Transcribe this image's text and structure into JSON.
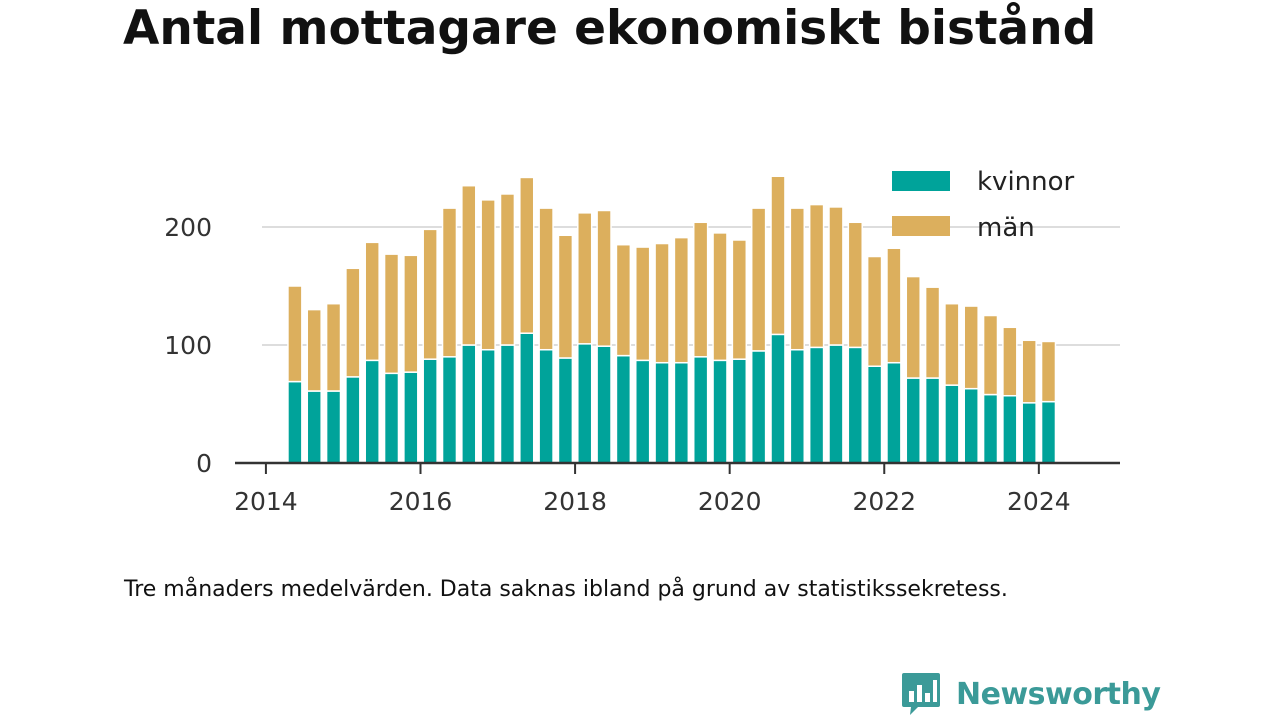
{
  "header": {
    "title": "Antal mottagare ekonomiskt bistånd"
  },
  "footer": {
    "caption": "Tre månaders medelvärden. Data saknas ibland på grund av statistikssekretess.",
    "brand": "Newsworthy"
  },
  "colors": {
    "kvinnor": "#00a39a",
    "man": "#dcaf5d",
    "axis": "#333333",
    "grid": "#dddddd",
    "brand": "#3b9a98"
  },
  "chart_data": {
    "type": "bar",
    "stacked": true,
    "title": "Antal mottagare ekonomiskt bistånd",
    "xlabel": "",
    "ylabel": "",
    "xlim": [
      2013.6,
      2025.05
    ],
    "ylim": [
      0,
      250
    ],
    "x_ticks": [
      2014,
      2016,
      2018,
      2020,
      2022,
      2024
    ],
    "x_tick_labels": [
      "2014",
      "2016",
      "2018",
      "2020",
      "2022",
      "2024"
    ],
    "y_ticks": [
      0,
      100,
      200
    ],
    "y_tick_labels": [
      "0",
      "100",
      "200"
    ],
    "grid": true,
    "legend_position": "top-right",
    "x": [
      2014.375,
      2014.625,
      2014.875,
      2015.125,
      2015.375,
      2015.625,
      2015.875,
      2016.125,
      2016.375,
      2016.625,
      2016.875,
      2017.125,
      2017.375,
      2017.625,
      2017.875,
      2018.125,
      2018.375,
      2018.625,
      2018.875,
      2019.125,
      2019.375,
      2019.625,
      2019.875,
      2020.125,
      2020.375,
      2020.625,
      2020.875,
      2021.125,
      2021.375,
      2021.625,
      2021.875,
      2022.125,
      2022.375,
      2022.625,
      2022.875,
      2023.125,
      2023.375,
      2023.625,
      2023.875,
      2024.125
    ],
    "series": [
      {
        "name": "kvinnor",
        "values": [
          69,
          61,
          61,
          73,
          87,
          76,
          77,
          88,
          90,
          100,
          96,
          100,
          110,
          96,
          89,
          101,
          99,
          91,
          87,
          85,
          85,
          90,
          87,
          88,
          95,
          109,
          96,
          98,
          100,
          98,
          82,
          85,
          72,
          72,
          66,
          63,
          58,
          57,
          51,
          52
        ]
      },
      {
        "name": "män",
        "values": [
          81,
          69,
          74,
          92,
          100,
          101,
          99,
          110,
          126,
          135,
          127,
          128,
          132,
          120,
          104,
          111,
          115,
          94,
          96,
          101,
          106,
          114,
          108,
          101,
          121,
          134,
          120,
          121,
          117,
          106,
          93,
          97,
          86,
          77,
          69,
          70,
          67,
          58,
          53,
          51
        ]
      }
    ]
  }
}
